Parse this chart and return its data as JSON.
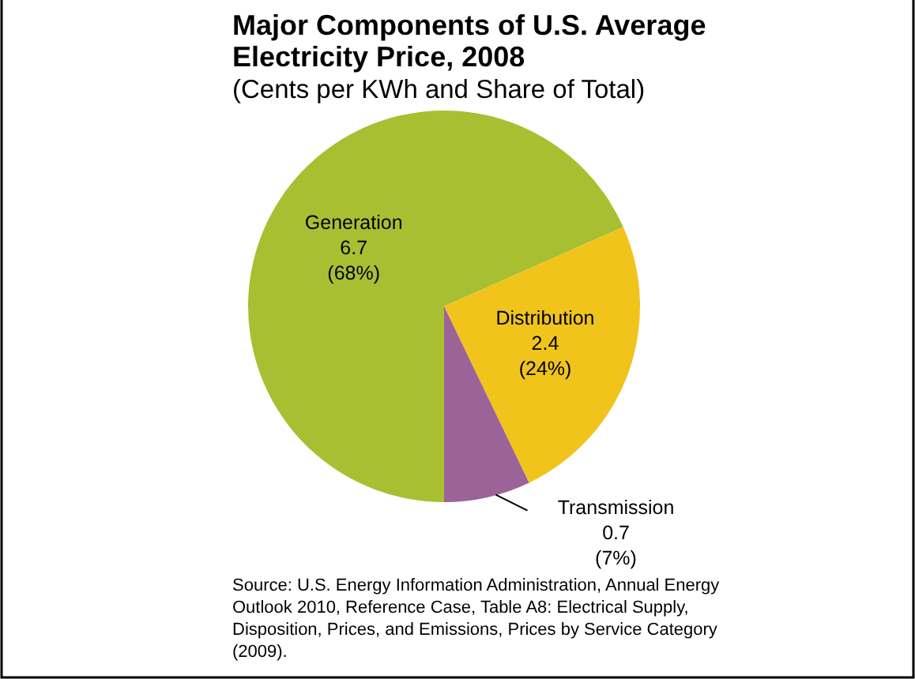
{
  "chart_data": {
    "type": "pie",
    "title": "Major Components of U.S. Average Electricity Price, 2008",
    "subtitle": "(Cents per KWh and Share of Total)",
    "categories": [
      "Generation",
      "Distribution",
      "Transmission"
    ],
    "values": [
      6.7,
      2.4,
      0.7
    ],
    "value_labels": [
      "6.7\n(68%)",
      "2.4\n(24%)",
      "0.7\n(7%)"
    ],
    "colors": [
      "#a8bf32",
      "#f0c41b",
      "#9c6398"
    ],
    "annotations": [
      "Source: U.S. Energy Information Administration, Annual Energy Outlook 2010, Reference Case, Table A8: Electrical Supply, Disposition, Prices, and Emissions, Prices by Service Category (2009)."
    ]
  }
}
